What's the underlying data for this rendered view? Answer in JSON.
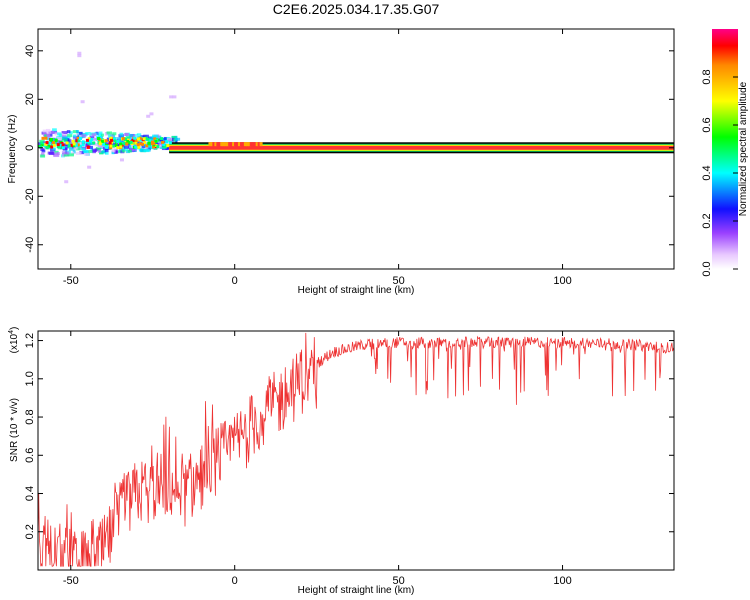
{
  "title": "C2E6.2025.034.17.35.G07",
  "chart_data": [
    {
      "type": "heatmap",
      "xlabel": "Height of straight line (km)",
      "ylabel": "Frequency (Hz)",
      "xlim": [
        -60,
        134
      ],
      "ylim": [
        -50,
        49
      ],
      "xticks": [
        -50,
        0,
        50,
        100
      ],
      "yticks": [
        -40,
        -20,
        0,
        20,
        40
      ],
      "colorbar": {
        "label": "Normalized spectral amplitude",
        "range": [
          0,
          1
        ],
        "ticks": [
          "0.0",
          "0.2",
          "0.4",
          "0.6",
          "0.8"
        ],
        "tick_values": [
          0,
          0.2,
          0.4,
          0.6,
          0.8
        ]
      },
      "features": [
        {
          "name": "spread-signal",
          "x_range": [
            -60,
            -20
          ],
          "freq_center": 2,
          "freq_spread": 6
        },
        {
          "name": "stable-line",
          "x_range": [
            -20,
            134
          ],
          "freq": 0
        }
      ]
    },
    {
      "type": "line",
      "xlabel": "Height of straight line (km)",
      "ylabel": "SNR (10 * v/v)",
      "scale_label": "(x10",
      "scale_exp": "4",
      "scale_close": ")",
      "xlim": [
        -60,
        134
      ],
      "ylim": [
        0.0,
        1.25
      ],
      "xticks": [
        -50,
        0,
        50,
        100
      ],
      "yticks": [
        "0.2",
        "0.4",
        "0.6",
        "0.8",
        "1.0",
        "1.2"
      ],
      "ytick_values": [
        0.2,
        0.4,
        0.6,
        0.8,
        1.0,
        1.2
      ],
      "color": "#ee3333",
      "envelope": {
        "x": [
          -60,
          -55,
          -50,
          -45,
          -40,
          -35,
          -30,
          -25,
          -20,
          -15,
          -10,
          -5,
          0,
          5,
          10,
          15,
          20,
          25,
          30,
          40,
          50,
          60,
          80,
          100,
          120,
          134
        ],
        "y": [
          0.15,
          0.08,
          0.04,
          0.03,
          0.1,
          0.28,
          0.4,
          0.42,
          0.45,
          0.4,
          0.5,
          0.58,
          0.65,
          0.75,
          0.83,
          0.9,
          0.98,
          1.08,
          1.14,
          1.18,
          1.19,
          1.19,
          1.19,
          1.19,
          1.18,
          1.16
        ]
      }
    }
  ]
}
